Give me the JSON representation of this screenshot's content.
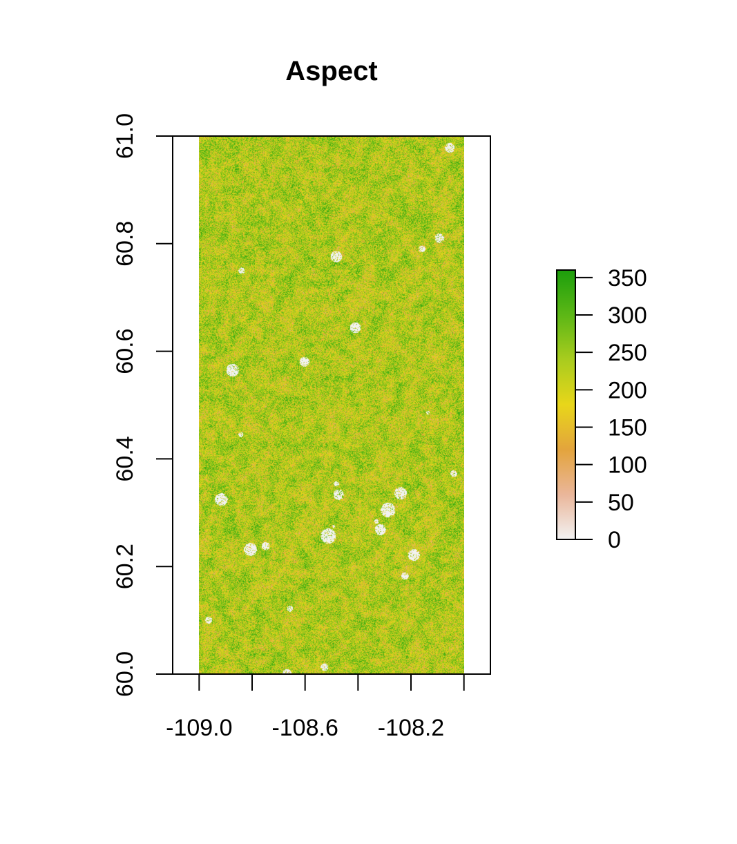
{
  "chart_data": {
    "type": "heatmap",
    "title": "Aspect",
    "xlabel": "",
    "ylabel": "",
    "xlim": [
      -109.1,
      -107.9
    ],
    "ylim": [
      60.0,
      61.0
    ],
    "raster_extent": {
      "x": [
        -109.0,
        -108.0
      ],
      "y": [
        60.0,
        61.0
      ]
    },
    "x_ticks": [
      -109.0,
      -108.8,
      -108.6,
      -108.4,
      -108.2,
      -108.0
    ],
    "x_tick_labels": [
      "-109.0",
      "",
      "-108.6",
      "",
      "-108.2",
      ""
    ],
    "y_ticks": [
      60.0,
      60.2,
      60.4,
      60.6,
      60.8,
      61.0
    ],
    "y_tick_labels": [
      "60.0",
      "60.2",
      "60.4",
      "60.6",
      "60.8",
      "61.0"
    ],
    "value_range": [
      0,
      360
    ],
    "legend": {
      "placement": "right",
      "ticks": [
        0,
        50,
        100,
        150,
        200,
        250,
        300,
        350
      ],
      "tick_labels": [
        "0",
        "50",
        "100",
        "150",
        "200",
        "250",
        "300",
        "350"
      ],
      "colors": [
        "#f2f2f2",
        "#eab69a",
        "#e3a43d",
        "#e8d61a",
        "#a9cc1e",
        "#5cb716",
        "#1c9e0c"
      ]
    },
    "na_color": "#f2f2f2",
    "grid": false
  }
}
